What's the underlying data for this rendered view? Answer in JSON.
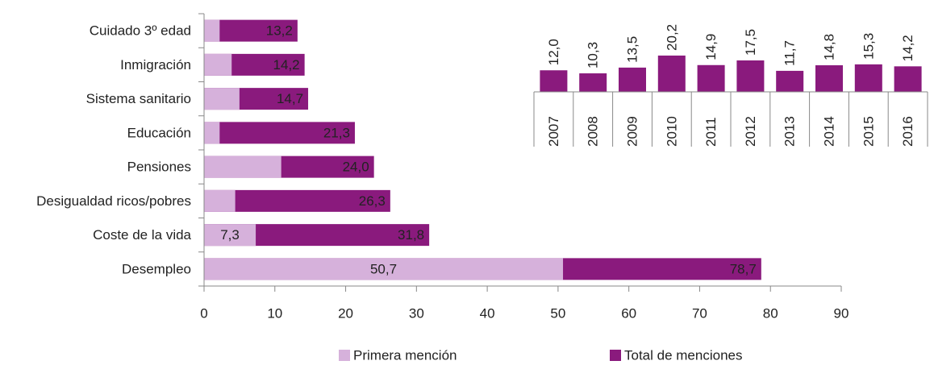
{
  "chart_data": [
    {
      "type": "bar",
      "orientation": "horizontal",
      "categories": [
        "Cuidado 3º edad",
        "Inmigración",
        "Sistema sanitario",
        "Educación",
        "Pensiones",
        "Desigualdad ricos/pobres",
        "Coste de la vida",
        "Desempleo"
      ],
      "series": [
        {
          "name": "Primera mención",
          "color": "#d6b1db",
          "values": [
            2.2,
            3.9,
            5.0,
            2.2,
            10.9,
            4.4,
            7.3,
            50.7
          ],
          "value_labels": [
            null,
            null,
            null,
            null,
            null,
            null,
            "7,3",
            "50,7"
          ]
        },
        {
          "name": "Total de menciones",
          "color": "#8a1a7d",
          "values": [
            13.2,
            14.2,
            14.7,
            21.3,
            24.0,
            26.3,
            31.8,
            78.7
          ],
          "value_labels": [
            "13,2",
            "14,2",
            "14,7",
            "21,3",
            "24,0",
            "26,3",
            "31,8",
            "78,7"
          ]
        }
      ],
      "xlim": [
        0,
        90
      ],
      "xticks": [
        0,
        10,
        20,
        30,
        40,
        50,
        60,
        70,
        80,
        90
      ],
      "legend": "bottom"
    },
    {
      "type": "bar",
      "orientation": "vertical",
      "categories": [
        "2007",
        "2008",
        "2009",
        "2010",
        "2011",
        "2012",
        "2013",
        "2014",
        "2015",
        "2016"
      ],
      "values": [
        12.0,
        10.3,
        13.5,
        20.2,
        14.9,
        17.5,
        11.7,
        14.8,
        15.3,
        14.2
      ],
      "value_labels": [
        "12,0",
        "10,3",
        "13,5",
        "20,2",
        "14,9",
        "17,5",
        "11,7",
        "14,8",
        "15,3",
        "14,2"
      ],
      "color": "#8a1a7d"
    }
  ]
}
